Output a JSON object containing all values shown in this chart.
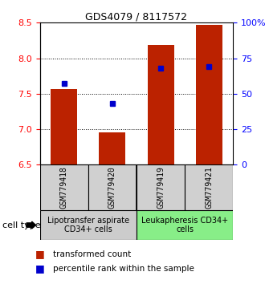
{
  "title": "GDS4079 / 8117572",
  "samples": [
    "GSM779418",
    "GSM779420",
    "GSM779419",
    "GSM779421"
  ],
  "transformed_counts": [
    7.57,
    6.96,
    8.19,
    8.47
  ],
  "percentile_ranks": [
    57,
    43,
    68,
    69
  ],
  "ylim_left": [
    6.5,
    8.5
  ],
  "ylim_right": [
    0,
    100
  ],
  "yticks_left": [
    6.5,
    7.0,
    7.5,
    8.0,
    8.5
  ],
  "yticks_right": [
    0,
    25,
    50,
    75,
    100
  ],
  "ytick_labels_right": [
    "0",
    "25",
    "50",
    "75",
    "100%"
  ],
  "bar_color": "#bb2200",
  "dot_color": "#0000cc",
  "bar_bottom": 6.5,
  "bar_width": 0.55,
  "groups": [
    {
      "label": "Lipotransfer aspirate\nCD34+ cells",
      "samples": [
        0,
        1
      ],
      "color": "#cccccc"
    },
    {
      "label": "Leukapheresis CD34+\ncells",
      "samples": [
        2,
        3
      ],
      "color": "#88ee88"
    }
  ],
  "cell_type_label": "cell type",
  "legend_red_label": "transformed count",
  "legend_blue_label": "percentile rank within the sample",
  "background_color": "#ffffff",
  "title_fontsize": 9,
  "tick_fontsize": 8,
  "sample_fontsize": 7,
  "group_fontsize": 7,
  "legend_fontsize": 7.5
}
